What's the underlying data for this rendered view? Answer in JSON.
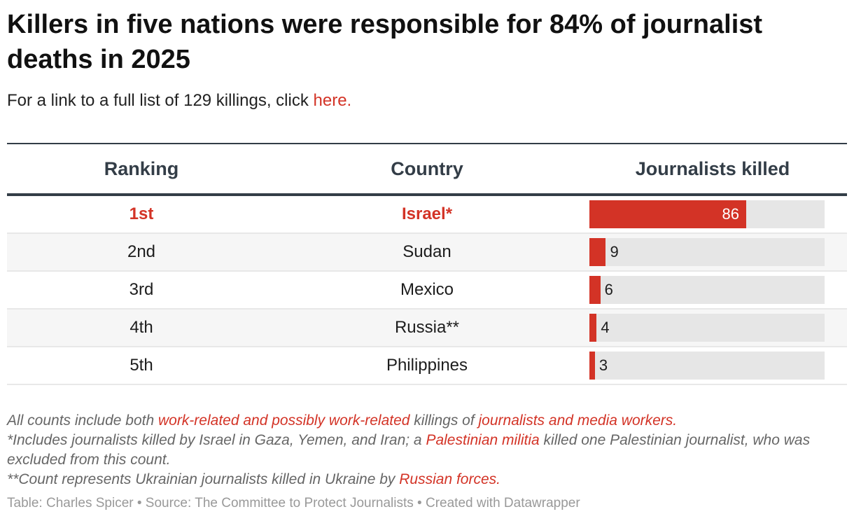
{
  "title": "Killers in five nations were responsible for 84% of journalist deaths in 2025",
  "subtitle": {
    "text": "For a link to a full list of 129 killings, click ",
    "link": "here."
  },
  "colors": {
    "accent": "#d33326",
    "track": "#e6e6e6",
    "header_rule": "#333d47"
  },
  "chart_data": {
    "type": "table",
    "columns": [
      "Ranking",
      "Country",
      "Journalists killed"
    ],
    "bar_max": 129,
    "rows": [
      {
        "rank": "1st",
        "country": "Israel*",
        "killed": 86,
        "label": "86",
        "highlight": true
      },
      {
        "rank": "2nd",
        "country": "Sudan",
        "killed": 9,
        "label": "9"
      },
      {
        "rank": "3rd",
        "country": "Mexico",
        "killed": 6,
        "label": "6"
      },
      {
        "rank": "4th",
        "country": "Russia**",
        "killed": 4,
        "label": "4"
      },
      {
        "rank": "5th",
        "country": "Philippines",
        "killed": 3,
        "label": "3"
      }
    ]
  },
  "notes": {
    "n1": {
      "a": "All counts include both ",
      "b": "work-related and possibly work-related",
      "c": " killings of ",
      "d": "journalists and media workers."
    },
    "n2": {
      "a": "*Includes journalists killed by Israel in Gaza, Yemen, and Iran; a ",
      "b": "Palestinian militia",
      "c": " killed one Palestinian journalist, who was excluded from this count."
    },
    "n3": {
      "a": "**Count represents Ukrainian journalists killed in Ukraine by ",
      "b": "Russian forces."
    }
  },
  "footer": "Table: Charles Spicer • Source: The Committee to Protect Journalists • Created with Datawrapper"
}
